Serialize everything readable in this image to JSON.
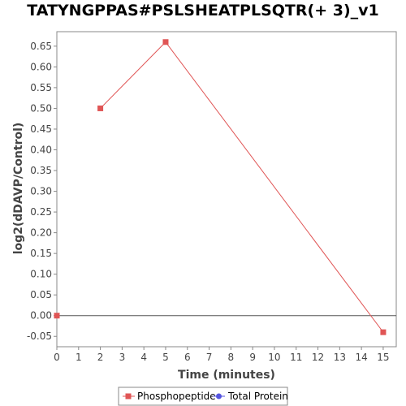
{
  "chart_data": {
    "type": "line",
    "title": "TATYNGPPAS#PSLSHEATPLSQTR(+ 3)_v1",
    "xlabel": "Time (minutes)",
    "ylabel": "log2(dDAVP/Control)",
    "xlim": [
      0,
      15.6
    ],
    "ylim": [
      -0.075,
      0.685
    ],
    "xticks": [
      0,
      1,
      2,
      3,
      4,
      5,
      6,
      7,
      8,
      9,
      10,
      11,
      12,
      13,
      14,
      15
    ],
    "yticks": [
      -0.05,
      0.0,
      0.05,
      0.1,
      0.15,
      0.2,
      0.25,
      0.3,
      0.35,
      0.4,
      0.45,
      0.5,
      0.55,
      0.6,
      0.65
    ],
    "ytick_labels": [
      "-0.05",
      "0.00",
      "0.05",
      "0.10",
      "0.15",
      "0.20",
      "0.25",
      "0.30",
      "0.35",
      "0.40",
      "0.45",
      "0.50",
      "0.55",
      "0.60",
      "0.65"
    ],
    "zero_line": 0,
    "grid": false,
    "legend_position": "bottom-center",
    "series": [
      {
        "name": "Phosphopeptide",
        "color": "#e05555",
        "marker": "square",
        "points": [
          {
            "x": 0,
            "y": 0.0
          },
          {
            "x": 2,
            "y": 0.5
          },
          {
            "x": 5,
            "y": 0.66
          },
          {
            "x": 15,
            "y": -0.04
          }
        ],
        "line_segments": [
          [
            2,
            5
          ],
          [
            5,
            15
          ]
        ]
      },
      {
        "name": "Total Protein",
        "color": "#5555e0",
        "marker": "circle",
        "points": [],
        "line_segments": []
      }
    ]
  }
}
